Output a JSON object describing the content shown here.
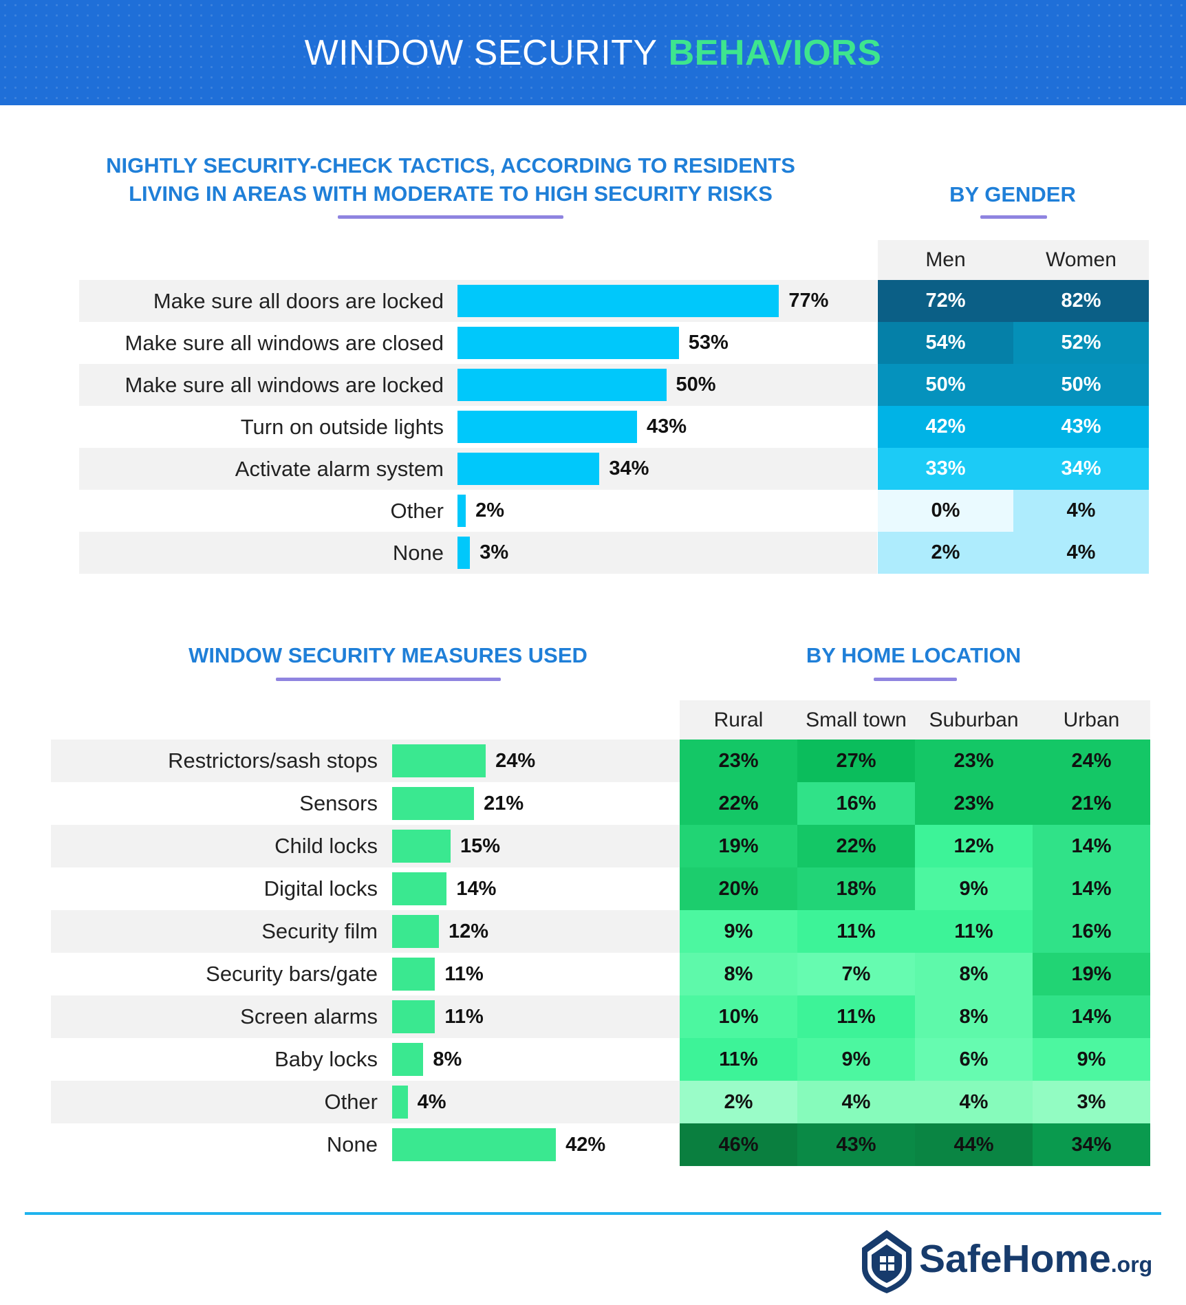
{
  "header": {
    "title_light": "WINDOW SECURITY",
    "title_bold": "BEHAVIORS"
  },
  "colors": {
    "header_bg": "#1f6fd8",
    "title_accent": "#3ee58e",
    "section_title": "#1f7fd8",
    "underline": "#8f84e0",
    "bar_blue": "#00c8fb",
    "bar_green": "#3ae890",
    "footer_line": "#1fb3ee",
    "logo_navy": "#173b6c"
  },
  "section1": {
    "title_line1": "NIGHTLY SECURITY-CHECK TACTICS, ACCORDING TO RESIDENTS",
    "title_line2": "LIVING IN AREAS WITH MODERATE TO HIGH SECURITY RISKS",
    "heatmap_title": "BY GENDER"
  },
  "section2": {
    "title": "WINDOW SECURITY MEASURES USED",
    "heatmap_title": "BY HOME LOCATION"
  },
  "chart_data": [
    {
      "type": "bar",
      "orientation": "horizontal",
      "title": "NIGHTLY SECURITY-CHECK TACTICS, ACCORDING TO RESIDENTS LIVING IN AREAS WITH MODERATE TO HIGH SECURITY RISKS",
      "categories": [
        "Make sure all doors are locked",
        "Make sure all windows are closed",
        "Make sure all windows are locked",
        "Turn on outside lights",
        "Activate alarm system",
        "Other",
        "None"
      ],
      "values": [
        77,
        53,
        50,
        43,
        34,
        2,
        3
      ],
      "value_labels": [
        "77%",
        "53%",
        "50%",
        "43%",
        "34%",
        "2%",
        "3%"
      ],
      "unit": "%",
      "xlim": [
        0,
        100
      ]
    },
    {
      "type": "heatmap",
      "title": "BY GENDER",
      "columns": [
        "Men",
        "Women"
      ],
      "rows": [
        "Make sure all doors are locked",
        "Make sure all windows are closed",
        "Make sure all windows are locked",
        "Turn on outside lights",
        "Activate alarm system",
        "Other",
        "None"
      ],
      "values": [
        [
          72,
          82
        ],
        [
          54,
          52
        ],
        [
          50,
          50
        ],
        [
          42,
          43
        ],
        [
          33,
          34
        ],
        [
          0,
          4
        ],
        [
          2,
          4
        ]
      ],
      "value_labels": [
        [
          "72%",
          "82%"
        ],
        [
          "54%",
          "52%"
        ],
        [
          "50%",
          "50%"
        ],
        [
          "42%",
          "43%"
        ],
        [
          "33%",
          "34%"
        ],
        [
          "0%",
          "4%"
        ],
        [
          "2%",
          "4%"
        ]
      ],
      "colors": [
        [
          "#0b5f86",
          "#0b5f86"
        ],
        [
          "#0580a8",
          "#0590b8"
        ],
        [
          "#0592bd",
          "#0592bd"
        ],
        [
          "#00b3e6",
          "#00b3e6"
        ],
        [
          "#1ccbf6",
          "#1ccbf6"
        ],
        [
          "#eafaff",
          "#aeecfd"
        ],
        [
          "#aeecfd",
          "#aeecfd"
        ]
      ]
    },
    {
      "type": "bar",
      "orientation": "horizontal",
      "title": "WINDOW SECURITY MEASURES USED",
      "categories": [
        "Restrictors/sash stops",
        "Sensors",
        "Child locks",
        "Digital locks",
        "Security film",
        "Security bars/gate",
        "Screen alarms",
        "Baby locks",
        "Other",
        "None"
      ],
      "values": [
        24,
        21,
        15,
        14,
        12,
        11,
        11,
        8,
        4,
        42
      ],
      "value_labels": [
        "24%",
        "21%",
        "15%",
        "14%",
        "12%",
        "11%",
        "11%",
        "8%",
        "4%",
        "42%"
      ],
      "unit": "%",
      "xlim": [
        0,
        100
      ]
    },
    {
      "type": "heatmap",
      "title": "BY HOME LOCATION",
      "columns": [
        "Rural",
        "Small town",
        "Suburban",
        "Urban"
      ],
      "rows": [
        "Restrictors/sash stops",
        "Sensors",
        "Child locks",
        "Digital locks",
        "Security film",
        "Security bars/gate",
        "Screen alarms",
        "Baby locks",
        "Other",
        "None"
      ],
      "values": [
        [
          23,
          27,
          23,
          24
        ],
        [
          22,
          16,
          23,
          21
        ],
        [
          19,
          22,
          12,
          14
        ],
        [
          20,
          18,
          9,
          14
        ],
        [
          9,
          11,
          11,
          16
        ],
        [
          8,
          7,
          8,
          19
        ],
        [
          10,
          11,
          8,
          14
        ],
        [
          11,
          9,
          6,
          9
        ],
        [
          2,
          4,
          4,
          3
        ],
        [
          46,
          43,
          44,
          34
        ]
      ],
      "value_labels": [
        [
          "23%",
          "27%",
          "23%",
          "24%"
        ],
        [
          "22%",
          "16%",
          "23%",
          "21%"
        ],
        [
          "19%",
          "22%",
          "12%",
          "14%"
        ],
        [
          "20%",
          "18%",
          "9%",
          "14%"
        ],
        [
          "9%",
          "11%",
          "11%",
          "16%"
        ],
        [
          "8%",
          "7%",
          "8%",
          "19%"
        ],
        [
          "10%",
          "11%",
          "8%",
          "14%"
        ],
        [
          "11%",
          "9%",
          "6%",
          "9%"
        ],
        [
          "2%",
          "4%",
          "4%",
          "3%"
        ],
        [
          "46%",
          "43%",
          "44%",
          "34%"
        ]
      ],
      "colors": [
        [
          "#14c766",
          "#0bbd5c",
          "#14c766",
          "#14c766"
        ],
        [
          "#14c766",
          "#30e288",
          "#14c766",
          "#14c766"
        ],
        [
          "#21d474",
          "#14c766",
          "#3df398",
          "#30e288"
        ],
        [
          "#1ccd6d",
          "#22d477",
          "#4cf7a0",
          "#30e288"
        ],
        [
          "#4cf7a0",
          "#3df398",
          "#3df398",
          "#30e288"
        ],
        [
          "#5ef9aa",
          "#66fbb0",
          "#5ef9aa",
          "#21d474"
        ],
        [
          "#4cf7a0",
          "#3df398",
          "#5ef9aa",
          "#30e288"
        ],
        [
          "#3df398",
          "#4cf7a0",
          "#66fbb0",
          "#4cf7a0"
        ],
        [
          "#9afcc8",
          "#86fbbb",
          "#86fbbb",
          "#92fcc2"
        ],
        [
          "#0a7f3f",
          "#0a8a46",
          "#0a8543",
          "#0a9a4e"
        ]
      ]
    }
  ],
  "logo": {
    "name": "SafeHome",
    "suffix": ".org"
  }
}
